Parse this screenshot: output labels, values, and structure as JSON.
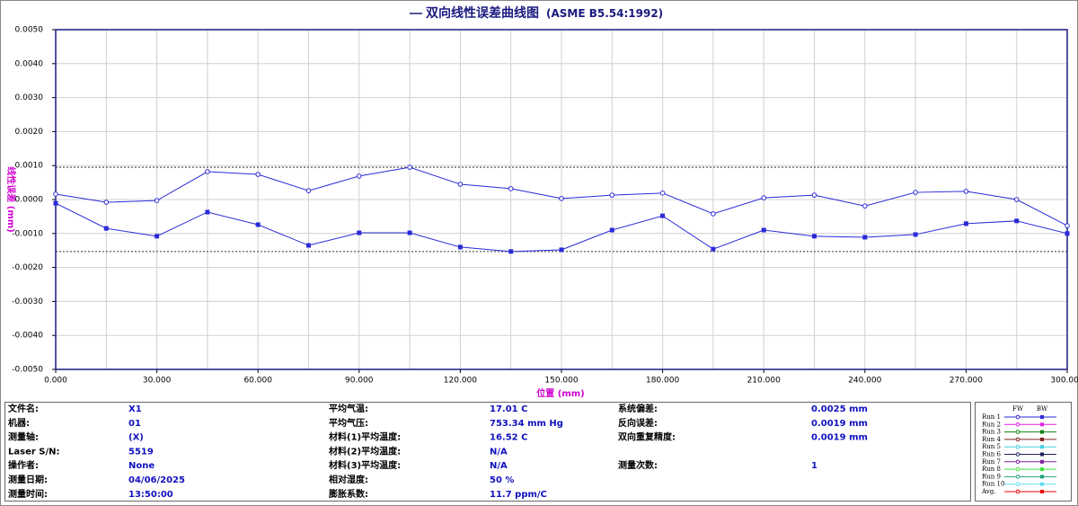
{
  "chart_data": {
    "type": "line",
    "title": "双向线性误差曲线图",
    "subtitle": "(ASME B5.54:1992)",
    "x_label": "位置 (mm)",
    "y_label": "线性误差 (mm)",
    "x": [
      0,
      15,
      30,
      45,
      60,
      75,
      90,
      105,
      120,
      135,
      150,
      165,
      180,
      195,
      210,
      225,
      240,
      255,
      270,
      285,
      300
    ],
    "series": [
      {
        "name": "FW",
        "color": "#2a2ad8",
        "marker": "circle-open",
        "values": [
          0.00016,
          -8e-05,
          -3e-05,
          0.00082,
          0.00074,
          0.00026,
          0.00069,
          0.00095,
          0.00045,
          0.00032,
          3e-05,
          0.00013,
          0.00019,
          -0.00042,
          5e-05,
          0.00013,
          -0.00019,
          0.00021,
          0.00024,
          0.0,
          -0.00077
        ]
      },
      {
        "name": "BW",
        "color": "#2a2ad8",
        "marker": "square",
        "values": [
          -0.00011,
          -0.00085,
          -0.00108,
          -0.00037,
          -0.00074,
          -0.00135,
          -0.00098,
          -0.00098,
          -0.0014,
          -0.00153,
          -0.00148,
          -0.0009,
          -0.00048,
          -0.00146,
          -0.0009,
          -0.00108,
          -0.00111,
          -0.00103,
          -0.00071,
          -0.00063,
          -0.001
        ]
      }
    ],
    "reference_lines": [
      0.00095,
      -0.00153
    ],
    "xlim": [
      0,
      300
    ],
    "xticks": [
      {
        "value": 0,
        "label": "0.000"
      },
      {
        "value": 30,
        "label": "30.000"
      },
      {
        "value": 60,
        "label": "60.000"
      },
      {
        "value": 90,
        "label": "90.000"
      },
      {
        "value": 120,
        "label": "120.000"
      },
      {
        "value": 150,
        "label": "150.000"
      },
      {
        "value": 180,
        "label": "180.000"
      },
      {
        "value": 210,
        "label": "210.000"
      },
      {
        "value": 240,
        "label": "240.000"
      },
      {
        "value": 270,
        "label": "270.000"
      },
      {
        "value": 300,
        "label": "300.000"
      }
    ],
    "ylim": [
      -0.005,
      0.005
    ],
    "yticks": [
      {
        "value": -0.005,
        "label": "-0.0050"
      },
      {
        "value": -0.004,
        "label": "-0.0040"
      },
      {
        "value": -0.003,
        "label": "-0.0030"
      },
      {
        "value": -0.002,
        "label": "-0.0020"
      },
      {
        "value": -0.001,
        "label": "-0.0010"
      },
      {
        "value": 0,
        "label": "0.0000"
      },
      {
        "value": 0.001,
        "label": "0.0010"
      },
      {
        "value": 0.002,
        "label": "0.0020"
      },
      {
        "value": 0.003,
        "label": "0.0030"
      },
      {
        "value": 0.004,
        "label": "0.0040"
      },
      {
        "value": 0.005,
        "label": "0.0050"
      }
    ],
    "grid": true,
    "legend": [
      {
        "label": "Run 1",
        "color": "#2a2ad8"
      },
      {
        "label": "Run 2",
        "color": "#e020e0"
      },
      {
        "label": "Run 3",
        "color": "#108010"
      },
      {
        "label": "Run 4",
        "color": "#802020"
      },
      {
        "label": "Run 5",
        "color": "#40d0e0"
      },
      {
        "label": "Run 6",
        "color": "#202060"
      },
      {
        "label": "Run 7",
        "color": "#8020a0"
      },
      {
        "label": "Run 8",
        "color": "#40e040"
      },
      {
        "label": "Run 9",
        "color": "#20a080"
      },
      {
        "label": "Run 10",
        "color": "#60e0f0"
      },
      {
        "label": "Avg.",
        "color": "#f00000"
      }
    ]
  },
  "info": {
    "columns": [
      [
        {
          "label": "文件名:",
          "value": "X1"
        },
        {
          "label": "机器:",
          "value": "01"
        },
        {
          "label": "测量轴:",
          "value": "(X)"
        },
        {
          "label": "Laser S/N:",
          "value": "5519"
        },
        {
          "label": "操作者:",
          "value": "None"
        },
        {
          "label": "测量日期:",
          "value": "04/06/2025"
        },
        {
          "label": "测量时间:",
          "value": "13:50:00"
        }
      ],
      [
        {
          "label": "平均气温:",
          "value": "17.01 C"
        },
        {
          "label": "平均气压:",
          "value": "753.34 mm Hg"
        },
        {
          "label": "材料(1)平均温度:",
          "value": "16.52 C"
        },
        {
          "label": "材料(2)平均温度:",
          "value": "N/A"
        },
        {
          "label": "材料(3)平均温度:",
          "value": "N/A"
        },
        {
          "label": "相对湿度:",
          "value": "50 %"
        },
        {
          "label": "膨胀系数:",
          "value": "11.7 ppm/C"
        }
      ],
      [
        {
          "label": "系统偏差:",
          "value": "0.0025 mm"
        },
        {
          "label": "反向误差:",
          "value": "0.0019 mm"
        },
        {
          "label": "双向重复精度:",
          "value": "0.0019 mm"
        },
        null,
        {
          "label": "测量次数:",
          "value": "1"
        }
      ]
    ]
  }
}
